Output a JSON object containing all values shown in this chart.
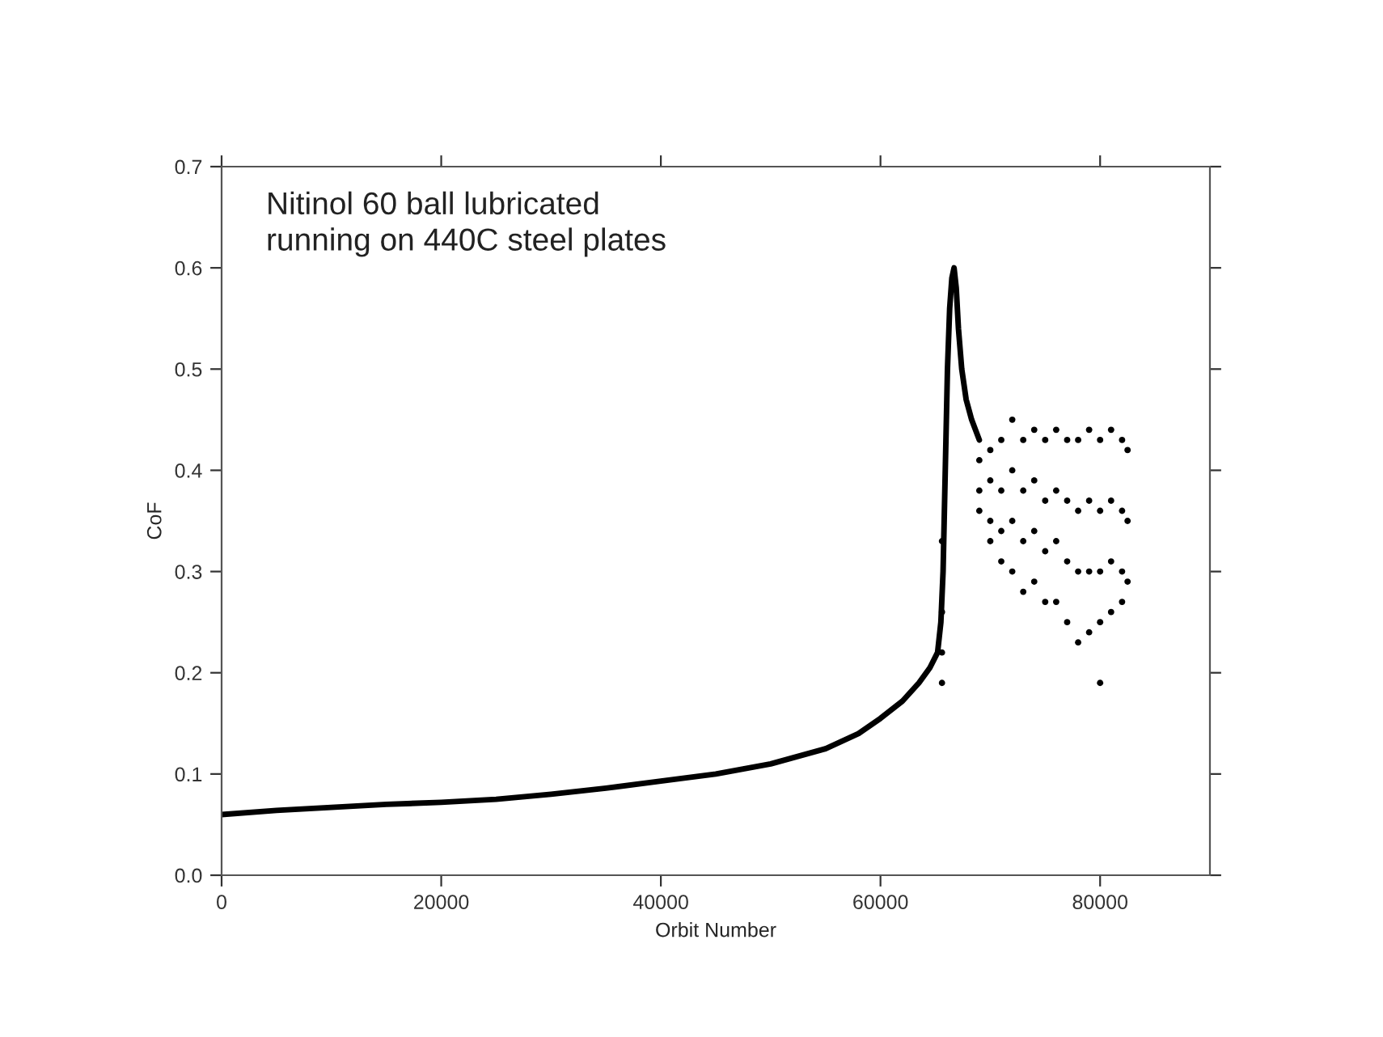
{
  "chart_data": {
    "type": "scatter",
    "xlabel": "Orbit Number",
    "ylabel": "CoF",
    "annotations": [
      "Nitinol 60 ball lubricated\nrunning on 440C steel plates"
    ],
    "xlim": [
      0,
      90000
    ],
    "ylim": [
      0,
      0.7
    ],
    "xticks": [
      0,
      20000,
      40000,
      60000,
      80000
    ],
    "yticks": [
      {
        "value": 0,
        "label": "0.0"
      },
      0.1,
      0.2,
      0.3,
      0.4,
      0.5,
      0.6,
      0.7
    ],
    "grid": false,
    "legend": false,
    "series": [
      {
        "type": "line",
        "color": "#000000",
        "x": [
          0,
          5000,
          10000,
          15000,
          20000,
          25000,
          30000,
          35000,
          40000,
          45000,
          50000,
          55000,
          58000,
          60000,
          62000,
          63500,
          64500,
          65200,
          65500,
          65700,
          65900,
          66100,
          66300,
          66500,
          66700,
          66900,
          67100,
          67400,
          67800,
          68300,
          69000
        ],
        "values": [
          0.06,
          0.064,
          0.067,
          0.07,
          0.072,
          0.075,
          0.08,
          0.086,
          0.093,
          0.1,
          0.11,
          0.125,
          0.14,
          0.155,
          0.172,
          0.19,
          0.205,
          0.22,
          0.25,
          0.3,
          0.4,
          0.5,
          0.56,
          0.59,
          0.6,
          0.58,
          0.54,
          0.5,
          0.47,
          0.45,
          0.43
        ]
      },
      {
        "color": "#000000",
        "marker": "circle",
        "x": [
          65600,
          65600,
          65600,
          65600,
          69000,
          69000,
          69000,
          70000,
          70000,
          70000,
          70000,
          71000,
          71000,
          71000,
          71000,
          72000,
          72000,
          72000,
          72000,
          73000,
          73000,
          73000,
          73000,
          74000,
          74000,
          74000,
          74000,
          75000,
          75000,
          75000,
          75000,
          76000,
          76000,
          76000,
          76000,
          77000,
          77000,
          77000,
          77000,
          78000,
          78000,
          78000,
          78000,
          79000,
          79000,
          79000,
          79000,
          80000,
          80000,
          80000,
          80000,
          80000,
          81000,
          81000,
          81000,
          81000,
          82000,
          82000,
          82000,
          82000,
          82500,
          82500,
          82500
        ],
        "values": [
          0.19,
          0.22,
          0.26,
          0.33,
          0.41,
          0.38,
          0.36,
          0.42,
          0.39,
          0.35,
          0.33,
          0.43,
          0.38,
          0.34,
          0.31,
          0.45,
          0.4,
          0.35,
          0.3,
          0.43,
          0.38,
          0.33,
          0.28,
          0.44,
          0.39,
          0.34,
          0.29,
          0.43,
          0.37,
          0.32,
          0.27,
          0.44,
          0.38,
          0.33,
          0.27,
          0.43,
          0.37,
          0.31,
          0.25,
          0.43,
          0.36,
          0.3,
          0.23,
          0.44,
          0.37,
          0.3,
          0.24,
          0.43,
          0.36,
          0.3,
          0.25,
          0.19,
          0.44,
          0.37,
          0.31,
          0.26,
          0.43,
          0.36,
          0.3,
          0.27,
          0.42,
          0.35,
          0.29
        ]
      }
    ]
  }
}
